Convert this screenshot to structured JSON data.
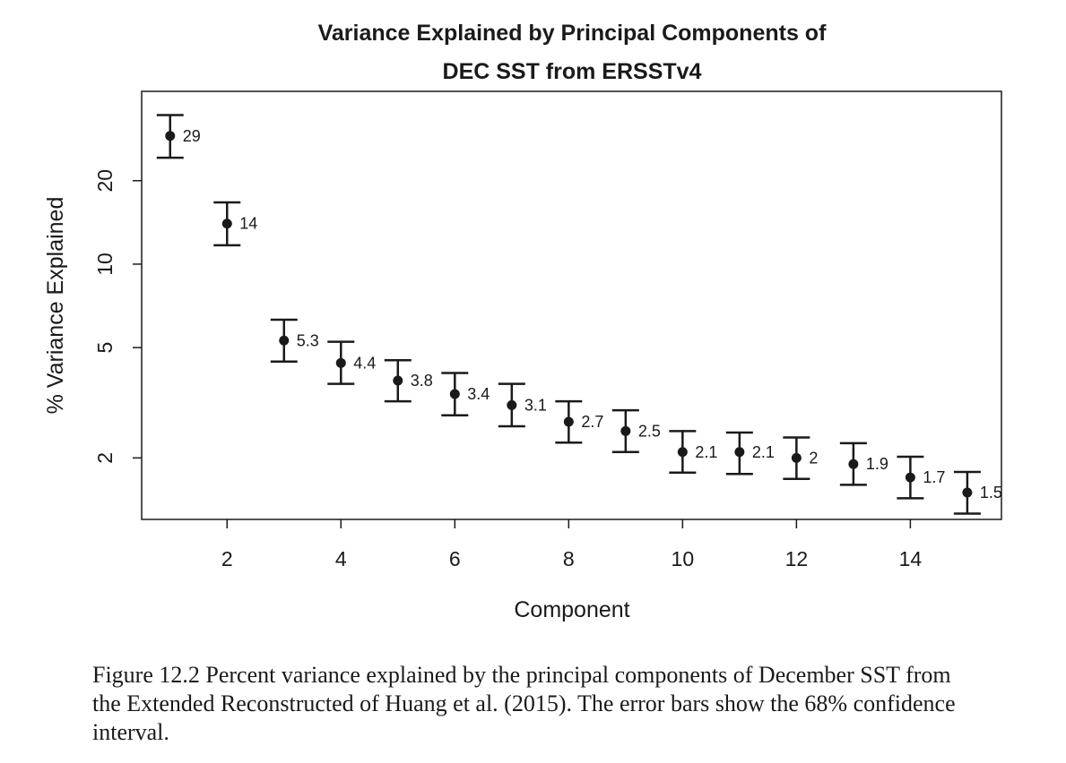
{
  "chart_data": {
    "type": "scatter",
    "title": [
      "Variance Explained by Principal Components of",
      "DEC SST from ERSSTv4"
    ],
    "xlabel": "Component",
    "ylabel": "% Variance Explained",
    "yscale": "log",
    "xlim": [
      0.5,
      15.6
    ],
    "ylim": [
      1.2,
      42
    ],
    "xticks": [
      2,
      4,
      6,
      8,
      10,
      12,
      14
    ],
    "yticks": [
      2,
      5,
      10,
      20
    ],
    "grid": false,
    "error_bars": "68% confidence interval",
    "x": [
      1,
      2,
      3,
      4,
      5,
      6,
      7,
      8,
      9,
      10,
      11,
      12,
      13,
      14,
      15
    ],
    "values": [
      29,
      14,
      5.3,
      4.4,
      3.8,
      3.4,
      3.1,
      2.7,
      2.5,
      2.1,
      2.1,
      2,
      1.9,
      1.7,
      1.5
    ],
    "labels": [
      "29",
      "14",
      "5.3",
      "4.4",
      "3.8",
      "3.4",
      "3.1",
      "2.7",
      "2.5",
      "2.1",
      "2.1",
      "2",
      "1.9",
      "1.7",
      "1.5"
    ],
    "upper": [
      34.5,
      16.7,
      6.3,
      5.25,
      4.5,
      4.05,
      3.7,
      3.2,
      2.97,
      2.5,
      2.47,
      2.37,
      2.26,
      2.02,
      1.78
    ],
    "lower": [
      24.2,
      11.7,
      4.45,
      3.7,
      3.2,
      2.85,
      2.6,
      2.27,
      2.1,
      1.77,
      1.75,
      1.68,
      1.6,
      1.43,
      1.26
    ]
  },
  "caption": "Figure 12.2  Percent variance explained by the principal components of December SST from the Extended Reconstructed of Huang et al. (2015). The error bars show the 68% confidence interval."
}
